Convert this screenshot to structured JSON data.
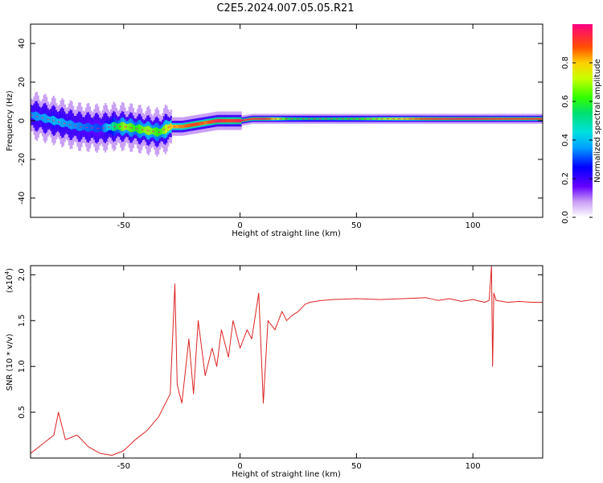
{
  "title": "C2E5.2024.007.05.05.R21",
  "chart_data": [
    {
      "type": "heatmap",
      "xlabel": "Height of straight line (km)",
      "ylabel": "Frequency (Hz)",
      "xlim": [
        -90,
        130
      ],
      "ylim": [
        -50,
        50
      ],
      "x_ticks": [
        -50,
        0,
        50,
        100
      ],
      "y_ticks": [
        -40,
        -20,
        0,
        20,
        40
      ],
      "colorbar": {
        "label": "Normalized spectral amplitude",
        "range": [
          0,
          1
        ],
        "ticks": [
          "0.0",
          "0.2",
          "0.4",
          "0.6",
          "0.8"
        ]
      },
      "ridge": {
        "x": [
          -90,
          -80,
          -70,
          -60,
          -55,
          -50,
          -45,
          -40,
          -35,
          -30,
          -25,
          -20,
          -15,
          -10,
          -5,
          0,
          5,
          10,
          20,
          30,
          50,
          80,
          100,
          110,
          130
        ],
        "frequency": [
          3,
          0,
          -3,
          -4,
          -3,
          -3,
          -4,
          -5,
          -6,
          -3,
          -3,
          -2,
          -1,
          0,
          0,
          0,
          1,
          1,
          1,
          1,
          1,
          1,
          1,
          1,
          1
        ],
        "amplitude": [
          0.35,
          0.4,
          0.35,
          0.3,
          0.5,
          0.7,
          0.6,
          0.7,
          0.6,
          0.8,
          0.85,
          0.9,
          0.85,
          0.95,
          0.9,
          0.95,
          0.9,
          0.95,
          0.6,
          0.55,
          0.6,
          0.9,
          0.95,
          0.9,
          0.9
        ]
      }
    },
    {
      "type": "line",
      "xlabel": "Height of straight line (km)",
      "ylabel": "SNR (10 * v/v)",
      "y_multiplier": "(x10",
      "y_multiplier_exp": "4",
      "xlim": [
        -90,
        130
      ],
      "ylim": [
        0,
        2.1
      ],
      "x_ticks": [
        -50,
        0,
        50,
        100
      ],
      "y_ticks": [
        0.5,
        1.0,
        1.5,
        2.0
      ],
      "line_color": "#dd2222",
      "series": [
        {
          "x": [
            -90,
            -85,
            -80,
            -78,
            -75,
            -70,
            -65,
            -60,
            -55,
            -50,
            -45,
            -40,
            -35,
            -30,
            -28,
            -27,
            -25,
            -22,
            -20,
            -18,
            -15,
            -12,
            -10,
            -8,
            -5,
            -3,
            0,
            3,
            5,
            8,
            10,
            12,
            15,
            18,
            20,
            22,
            25,
            28,
            30,
            35,
            40,
            50,
            60,
            70,
            80,
            85,
            90,
            95,
            100,
            105,
            107,
            108,
            108.5,
            109,
            110,
            115,
            120,
            125,
            130
          ],
          "y": [
            0.05,
            0.15,
            0.25,
            0.5,
            0.2,
            0.25,
            0.12,
            0.05,
            0.03,
            0.08,
            0.2,
            0.3,
            0.45,
            0.7,
            1.9,
            0.8,
            0.6,
            1.3,
            0.7,
            1.5,
            0.9,
            1.2,
            1.0,
            1.4,
            1.1,
            1.5,
            1.2,
            1.4,
            1.3,
            1.8,
            0.6,
            1.5,
            1.4,
            1.6,
            1.5,
            1.55,
            1.6,
            1.68,
            1.7,
            1.72,
            1.73,
            1.74,
            1.73,
            1.74,
            1.75,
            1.72,
            1.74,
            1.71,
            1.73,
            1.7,
            1.72,
            2.1,
            1.0,
            1.8,
            1.72,
            1.7,
            1.71,
            1.7,
            1.7
          ]
        }
      ]
    }
  ]
}
